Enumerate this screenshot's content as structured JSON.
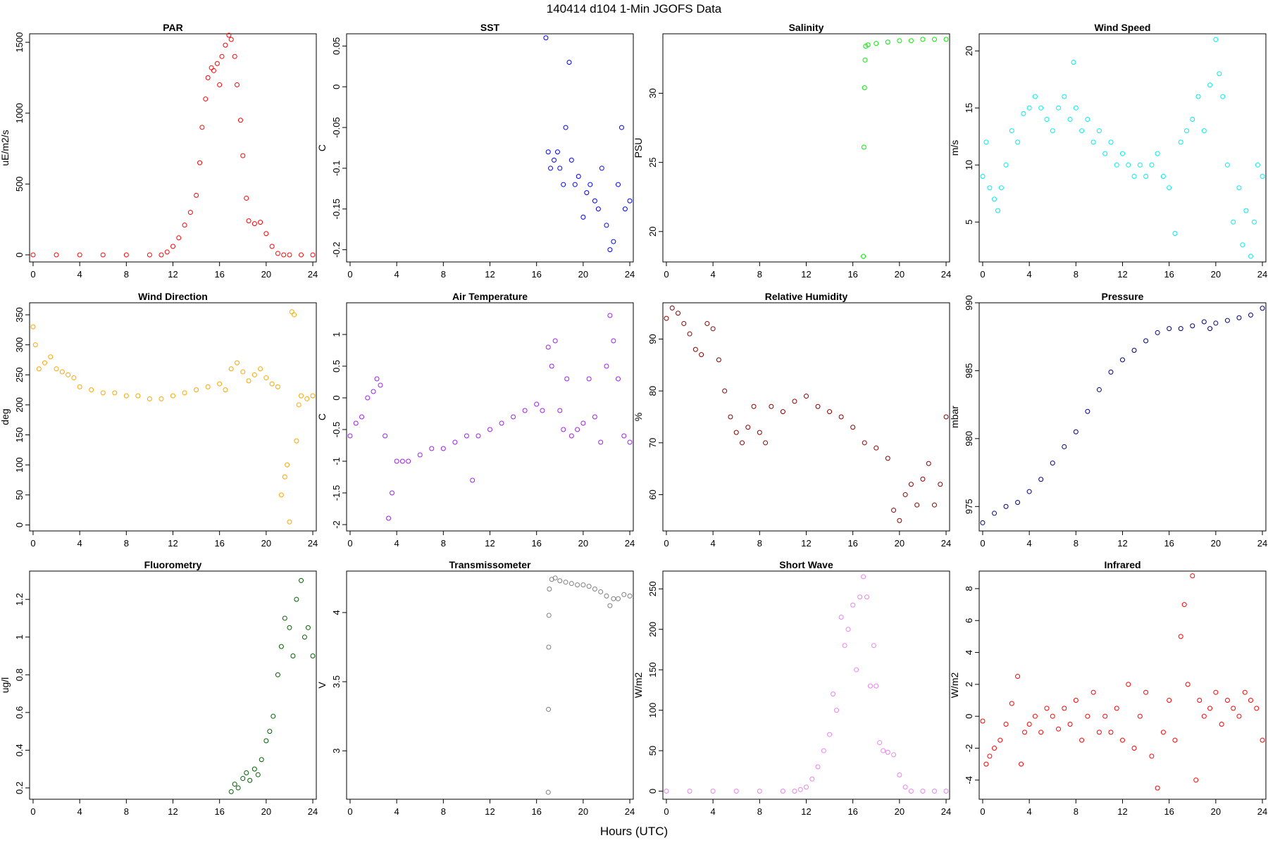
{
  "figure": {
    "title": "140414   d104   1-Min  JGOFS Data",
    "xlabel": "Hours (UTC)"
  },
  "colors": {
    "PAR": "#ff0000",
    "SST": "#0000ff",
    "Salinity": "#00ee00",
    "Wind Speed": "#00eeee",
    "Wind Direction": "#ffa500",
    "Air Temperature": "#a020f0",
    "Relative Humidity": "#8b0000",
    "Pressure": "#000080",
    "Fluorometry": "#006400",
    "Transmissometer": "#808080",
    "Short Wave": "#ee82ee",
    "Infrared": "#ff0000"
  },
  "chart_data": [
    {
      "type": "scatter",
      "title": "PAR",
      "ylabel": "uE/m2/s",
      "xlim": [
        -0.3,
        24.3
      ],
      "xticks": [
        0,
        4,
        8,
        12,
        16,
        20,
        24
      ],
      "ylim": [
        -50,
        1560
      ],
      "yticks": [
        0,
        500,
        1000,
        1500
      ],
      "x": [
        0,
        2,
        4,
        6,
        8,
        10,
        11,
        11.5,
        12,
        12.5,
        13,
        13.5,
        14,
        14.3,
        14.5,
        14.8,
        15,
        15.3,
        15.5,
        15.8,
        16,
        16.2,
        16.5,
        16.8,
        17,
        17.3,
        17.5,
        17.8,
        18,
        18.3,
        18.5,
        19,
        19.5,
        20,
        20.5,
        21,
        21.5,
        22,
        23,
        24
      ],
      "y": [
        0,
        0,
        0,
        0,
        0,
        0,
        0,
        20,
        60,
        120,
        210,
        300,
        420,
        650,
        900,
        1100,
        1250,
        1320,
        1300,
        1350,
        1200,
        1400,
        1480,
        1550,
        1520,
        1400,
        1200,
        950,
        700,
        400,
        240,
        220,
        230,
        150,
        60,
        10,
        0,
        0,
        0,
        0
      ]
    },
    {
      "type": "scatter",
      "title": "SST",
      "ylabel": "C",
      "xlim": [
        -0.3,
        24.3
      ],
      "xticks": [
        0,
        4,
        8,
        12,
        16,
        20,
        24
      ],
      "ylim": [
        -0.215,
        0.065
      ],
      "yticks": [
        -0.2,
        -0.15,
        -0.1,
        -0.05,
        0,
        0.05
      ],
      "x": [
        16.8,
        17,
        17.2,
        17.5,
        17.8,
        18,
        18.3,
        18.5,
        18.8,
        19,
        19.3,
        19.6,
        20,
        20.3,
        20.6,
        21,
        21.3,
        21.6,
        22,
        22.3,
        22.6,
        23,
        23.3,
        23.6,
        24
      ],
      "y": [
        0.06,
        -0.08,
        -0.1,
        -0.09,
        -0.08,
        -0.1,
        -0.12,
        -0.05,
        0.03,
        -0.09,
        -0.12,
        -0.11,
        -0.16,
        -0.13,
        -0.12,
        -0.14,
        -0.15,
        -0.1,
        -0.17,
        -0.2,
        -0.19,
        -0.12,
        -0.05,
        -0.15,
        -0.14
      ]
    },
    {
      "type": "scatter",
      "title": "Salinity",
      "ylabel": "PSU",
      "xlim": [
        -0.3,
        24.3
      ],
      "xticks": [
        0,
        4,
        8,
        12,
        16,
        20,
        24
      ],
      "ylim": [
        17.8,
        34.3
      ],
      "yticks": [
        20,
        25,
        30
      ],
      "x": [
        16.9,
        16.95,
        17,
        17.05,
        17.1,
        17.3,
        18,
        19,
        20,
        21,
        22,
        23,
        24
      ],
      "y": [
        18.2,
        26.1,
        30.4,
        32.4,
        33.4,
        33.5,
        33.6,
        33.7,
        33.8,
        33.8,
        33.9,
        33.9,
        33.9
      ]
    },
    {
      "type": "scatter",
      "title": "Wind Speed",
      "ylabel": "m/s",
      "xlim": [
        -0.3,
        24.3
      ],
      "xticks": [
        0,
        4,
        8,
        12,
        16,
        20,
        24
      ],
      "ylim": [
        1.5,
        21.5
      ],
      "yticks": [
        5,
        10,
        15,
        20
      ],
      "x": [
        0,
        0.3,
        0.6,
        1,
        1.3,
        1.6,
        2,
        2.5,
        3,
        3.5,
        4,
        4.5,
        5,
        5.5,
        6,
        6.5,
        7,
        7.5,
        7.8,
        8,
        8.5,
        9,
        9.5,
        10,
        10.5,
        11,
        11.5,
        12,
        12.5,
        13,
        13.5,
        14,
        14.5,
        15,
        15.5,
        16,
        16.5,
        17,
        17.5,
        18,
        18.5,
        19,
        19.5,
        20,
        20.3,
        20.6,
        21,
        21.5,
        22,
        22.3,
        22.6,
        23,
        23.3,
        23.6,
        24
      ],
      "y": [
        9,
        12,
        8,
        7,
        6,
        8,
        10,
        13,
        12,
        14.5,
        15,
        16,
        15,
        14,
        13,
        15,
        16,
        14,
        19,
        15,
        13,
        14,
        12,
        13,
        11,
        12,
        10,
        11,
        10,
        9,
        10,
        9,
        10,
        11,
        9,
        8,
        4,
        12,
        13,
        14,
        16,
        13,
        17,
        21,
        18,
        16,
        10,
        5,
        8,
        3,
        6,
        2,
        5,
        10,
        9
      ]
    },
    {
      "type": "scatter",
      "title": "Wind Direction",
      "ylabel": "deg",
      "xlim": [
        -0.3,
        24.3
      ],
      "xticks": [
        0,
        4,
        8,
        12,
        16,
        20,
        24
      ],
      "ylim": [
        -10,
        370
      ],
      "yticks": [
        0,
        50,
        100,
        150,
        200,
        250,
        300,
        350
      ],
      "x": [
        0,
        0.2,
        0.5,
        1,
        1.5,
        2,
        2.5,
        3,
        3.5,
        4,
        5,
        6,
        7,
        8,
        9,
        10,
        11,
        12,
        13,
        14,
        15,
        16,
        16.5,
        17,
        17.5,
        18,
        18.5,
        19,
        19.5,
        20,
        20.5,
        21,
        21.3,
        21.6,
        21.8,
        22,
        22.2,
        22.4,
        22.6,
        22.8,
        23,
        23.5,
        24
      ],
      "y": [
        330,
        300,
        260,
        270,
        280,
        260,
        255,
        250,
        245,
        230,
        225,
        220,
        220,
        215,
        215,
        210,
        210,
        215,
        220,
        225,
        230,
        235,
        225,
        260,
        270,
        255,
        240,
        250,
        260,
        245,
        235,
        230,
        50,
        80,
        100,
        5,
        355,
        350,
        140,
        200,
        215,
        210,
        215
      ]
    },
    {
      "type": "scatter",
      "title": "Air Temperature",
      "ylabel": "C",
      "xlim": [
        -0.3,
        24.3
      ],
      "xticks": [
        0,
        4,
        8,
        12,
        16,
        20,
        24
      ],
      "ylim": [
        -2.1,
        1.5
      ],
      "yticks": [
        -2,
        -1.5,
        -1,
        -0.5,
        0,
        0.5,
        1
      ],
      "x": [
        0,
        0.5,
        1,
        1.5,
        2,
        2.3,
        2.6,
        3,
        3.3,
        3.6,
        4,
        4.5,
        5,
        6,
        7,
        8,
        9,
        10,
        10.5,
        11,
        12,
        13,
        14,
        15,
        16,
        16.5,
        17,
        17.3,
        17.6,
        18,
        18.3,
        18.6,
        19,
        19.5,
        20,
        20.5,
        21,
        21.5,
        22,
        22.3,
        22.6,
        23,
        23.5,
        24
      ],
      "y": [
        -0.6,
        -0.4,
        -0.3,
        0,
        0.1,
        0.3,
        0.2,
        -0.6,
        -1.9,
        -1.5,
        -1,
        -1,
        -1,
        -0.9,
        -0.8,
        -0.8,
        -0.7,
        -0.6,
        -1.3,
        -0.6,
        -0.5,
        -0.4,
        -0.3,
        -0.2,
        -0.1,
        -0.2,
        0.8,
        0.5,
        0.9,
        -0.2,
        -0.5,
        0.3,
        -0.6,
        -0.5,
        -0.4,
        0.3,
        -0.3,
        -0.7,
        0.5,
        1.3,
        0.9,
        0.3,
        -0.6,
        -0.7
      ]
    },
    {
      "type": "scatter",
      "title": "Relative Humidity",
      "ylabel": "%",
      "xlim": [
        -0.3,
        24.3
      ],
      "xticks": [
        0,
        4,
        8,
        12,
        16,
        20,
        24
      ],
      "ylim": [
        53,
        97
      ],
      "yticks": [
        60,
        70,
        80,
        90
      ],
      "x": [
        0,
        0.5,
        1,
        1.5,
        2,
        2.5,
        3,
        3.5,
        4,
        4.5,
        5,
        5.5,
        6,
        6.5,
        7,
        7.5,
        8,
        8.5,
        9,
        10,
        11,
        12,
        13,
        14,
        15,
        16,
        17,
        18,
        19,
        19.5,
        20,
        20.5,
        21,
        21.5,
        22,
        22.5,
        23,
        23.5,
        24
      ],
      "y": [
        94,
        96,
        95,
        93,
        91,
        88,
        87,
        93,
        92,
        86,
        80,
        75,
        72,
        70,
        73,
        77,
        72,
        70,
        77,
        76,
        78,
        79,
        77,
        76,
        75,
        73,
        70,
        69,
        67,
        57,
        55,
        60,
        62,
        58,
        63,
        66,
        58,
        62,
        75
      ]
    },
    {
      "type": "scatter",
      "title": "Pressure",
      "ylabel": "mbar",
      "xlim": [
        -0.3,
        24.3
      ],
      "xticks": [
        0,
        4,
        8,
        12,
        16,
        20,
        24
      ],
      "ylim": [
        973.2,
        990
      ],
      "yticks": [
        975,
        980,
        985,
        990
      ],
      "x": [
        0,
        1,
        2,
        3,
        4,
        5,
        6,
        7,
        8,
        9,
        10,
        11,
        12,
        13,
        14,
        15,
        16,
        17,
        18,
        19,
        19.5,
        20,
        21,
        22,
        23,
        24
      ],
      "y": [
        973.8,
        974.5,
        975,
        975.3,
        976.1,
        977,
        978.2,
        979.4,
        980.5,
        982,
        983.6,
        984.9,
        985.8,
        986.5,
        987.2,
        987.8,
        988.1,
        988.1,
        988.3,
        988.6,
        988.1,
        988.5,
        988.7,
        988.9,
        989.1,
        989.6
      ]
    },
    {
      "type": "scatter",
      "title": "Fluorometry",
      "ylabel": "ug/l",
      "xlim": [
        -0.3,
        24.3
      ],
      "xticks": [
        0,
        4,
        8,
        12,
        16,
        20,
        24
      ],
      "ylim": [
        0.14,
        1.35
      ],
      "yticks": [
        0.2,
        0.4,
        0.6,
        0.8,
        1.0,
        1.2
      ],
      "x": [
        17,
        17.3,
        17.6,
        18,
        18.3,
        18.6,
        19,
        19.3,
        19.6,
        20,
        20.3,
        20.6,
        21,
        21.3,
        21.6,
        22,
        22.3,
        22.6,
        23,
        23.3,
        23.6,
        24
      ],
      "y": [
        0.18,
        0.22,
        0.2,
        0.25,
        0.28,
        0.24,
        0.3,
        0.27,
        0.35,
        0.45,
        0.5,
        0.58,
        0.8,
        0.95,
        1.1,
        1.05,
        0.9,
        1.2,
        1.3,
        1.0,
        1.05,
        0.9
      ]
    },
    {
      "type": "scatter",
      "title": "Transmissometer",
      "ylabel": "V",
      "xlim": [
        -0.3,
        24.3
      ],
      "xticks": [
        0,
        4,
        8,
        12,
        16,
        20,
        24
      ],
      "ylim": [
        2.65,
        4.3
      ],
      "yticks": [
        3.0,
        3.5,
        4.0
      ],
      "x": [
        17,
        17.02,
        17.04,
        17.06,
        17.1,
        17.3,
        17.6,
        18,
        18.5,
        19,
        19.5,
        20,
        20.5,
        21,
        21.5,
        22,
        22.3,
        22.6,
        23,
        23.5,
        24
      ],
      "y": [
        2.7,
        3.3,
        3.75,
        3.98,
        4.17,
        4.24,
        4.25,
        4.23,
        4.22,
        4.21,
        4.2,
        4.2,
        4.19,
        4.17,
        4.15,
        4.12,
        4.05,
        4.1,
        4.1,
        4.13,
        4.12
      ]
    },
    {
      "type": "scatter",
      "title": "Short Wave",
      "ylabel": "W/m2",
      "xlim": [
        -0.3,
        24.3
      ],
      "xticks": [
        0,
        4,
        8,
        12,
        16,
        20,
        24
      ],
      "ylim": [
        -10,
        272
      ],
      "yticks": [
        0,
        50,
        100,
        150,
        200,
        250
      ],
      "x": [
        0,
        2,
        4,
        6,
        8,
        10,
        11,
        11.5,
        12,
        12.5,
        13,
        13.5,
        14,
        14.3,
        14.6,
        15,
        15.3,
        15.6,
        16,
        16.3,
        16.6,
        16.9,
        17.2,
        17.5,
        17.8,
        18,
        18.3,
        18.6,
        19,
        19.5,
        20,
        20.5,
        21,
        22,
        23,
        24
      ],
      "y": [
        0,
        0,
        0,
        0,
        0,
        0,
        0,
        2,
        5,
        15,
        30,
        50,
        70,
        120,
        100,
        215,
        180,
        200,
        230,
        150,
        240,
        265,
        240,
        130,
        180,
        130,
        60,
        50,
        48,
        45,
        20,
        5,
        0,
        0,
        0,
        0
      ]
    },
    {
      "type": "scatter",
      "title": "Infrared",
      "ylabel": "W/m2",
      "xlim": [
        -0.3,
        24.3
      ],
      "xticks": [
        0,
        4,
        8,
        12,
        16,
        20,
        24
      ],
      "ylim": [
        -5.2,
        9.1
      ],
      "yticks": [
        -4,
        -2,
        0,
        2,
        4,
        6,
        8
      ],
      "x": [
        0,
        0.3,
        0.6,
        1,
        1.5,
        2,
        2.5,
        3,
        3.3,
        3.6,
        4,
        4.5,
        5,
        5.5,
        6,
        6.5,
        7,
        7.5,
        8,
        8.5,
        9,
        9.5,
        10,
        10.5,
        11,
        11.5,
        12,
        12.5,
        13,
        13.5,
        14,
        14.5,
        15,
        15.5,
        16,
        16.5,
        17,
        17.3,
        17.6,
        18,
        18.3,
        18.6,
        19,
        19.5,
        20,
        20.5,
        21,
        21.5,
        22,
        22.5,
        23,
        23.5,
        24
      ],
      "y": [
        -0.3,
        -3,
        -2.5,
        -2,
        -1.5,
        -0.5,
        0.8,
        2.5,
        -3,
        -1,
        -0.5,
        0,
        -1,
        0.5,
        0,
        -0.8,
        0.5,
        -0.5,
        1,
        -1.5,
        0,
        1.5,
        -1,
        0,
        -1,
        0.5,
        -1.5,
        2,
        -2,
        0,
        1.5,
        -2.5,
        -4.5,
        -1,
        1,
        -1.5,
        5,
        7,
        2,
        8.8,
        -4,
        1,
        0,
        0.5,
        1.5,
        -0.5,
        1,
        0.5,
        0,
        1.5,
        1,
        0.5,
        -1.5
      ]
    }
  ]
}
